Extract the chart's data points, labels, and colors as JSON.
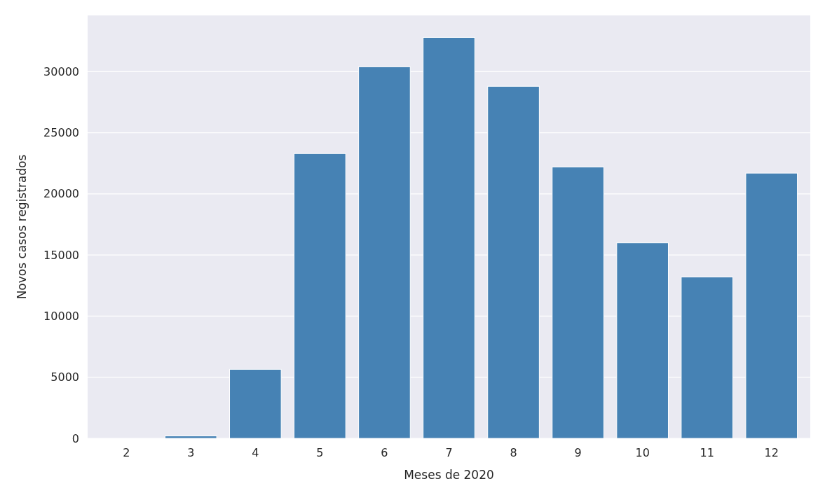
{
  "chart_data": {
    "type": "bar",
    "xlabel": "Meses de 2020",
    "ylabel": "Novos casos registrados",
    "categories": [
      "2",
      "3",
      "4",
      "5",
      "6",
      "7",
      "8",
      "9",
      "10",
      "11",
      "12"
    ],
    "values": [
      0,
      200,
      5650,
      23300,
      30400,
      32800,
      28800,
      22200,
      16000,
      13200,
      21700
    ],
    "color": "#4682b4",
    "ylim": [
      0,
      34600
    ],
    "yticks": [
      0,
      5000,
      10000,
      15000,
      20000,
      25000,
      30000
    ],
    "grid": "y"
  }
}
